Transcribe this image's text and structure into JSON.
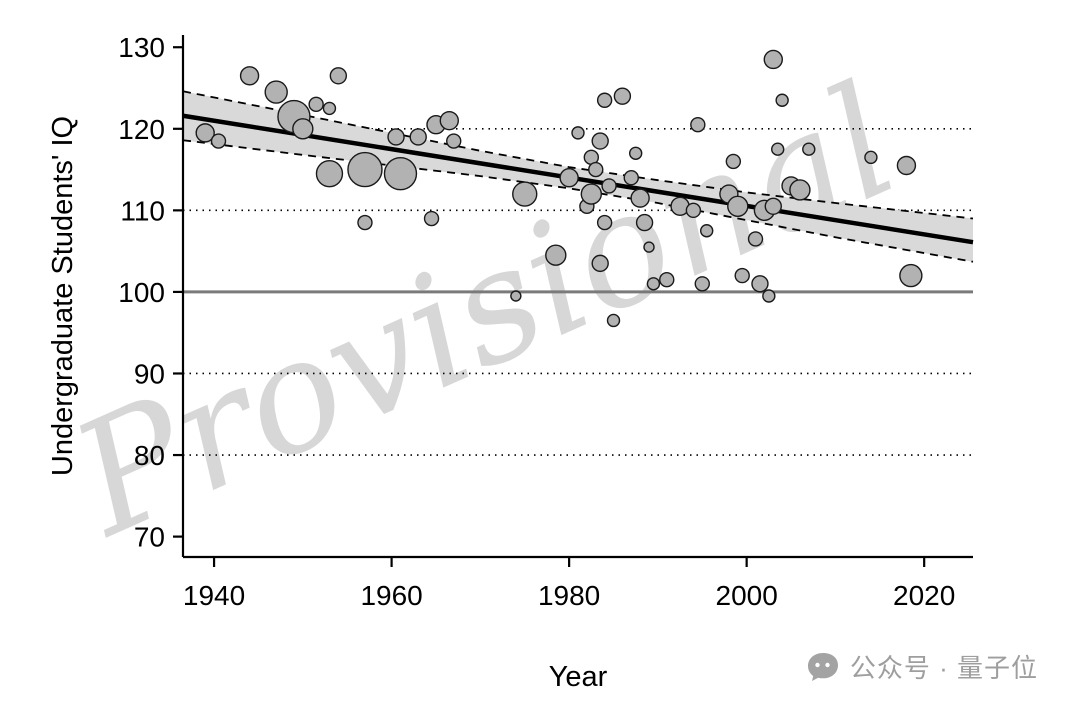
{
  "watermark": "Provisional",
  "footer": {
    "brand_text": "公众号 · 量子位",
    "icon": "chat-bubble-icon"
  },
  "colors": {
    "point_fill": "#b2b2b2",
    "point_stroke": "#1a1a1a",
    "band_fill": "#d9d9d9",
    "band_edge": "#000000",
    "regression_line": "#000000",
    "reference_line": "#7a7a7a",
    "gridline": "#000000",
    "axis": "#000000",
    "watermark": "#d7d7d7",
    "footer_gray": "#9e9e9e"
  },
  "chart_data": {
    "type": "scatter",
    "title": "",
    "xlabel": "Year",
    "ylabel": "Undergraduate Students' IQ",
    "xlim": [
      1936.5,
      2025.5
    ],
    "ylim": [
      67.5,
      131.5
    ],
    "x_ticks": [
      1940,
      1960,
      1980,
      2000,
      2020
    ],
    "y_ticks": [
      70,
      80,
      90,
      100,
      110,
      120,
      130
    ],
    "gridlines_y_dotted": [
      80,
      90,
      110,
      120
    ],
    "reference_line_y": 100,
    "grid": "horizontal-dotted",
    "legend": "none",
    "regression_line": {
      "x1": 1936.5,
      "y1": 121.6,
      "x2": 2025.5,
      "y2": 106.1
    },
    "confidence_band": {
      "x": [
        1936.5,
        1950,
        1960,
        1970,
        1980,
        1990,
        2000,
        2010,
        2025.5
      ],
      "upper": [
        124.6,
        121.7,
        119.5,
        117.3,
        115.3,
        113.7,
        112.2,
        110.9,
        109.0
      ],
      "lower": [
        118.6,
        116.8,
        115.5,
        114.2,
        112.7,
        110.9,
        108.8,
        106.7,
        103.7
      ]
    },
    "points_format": [
      "year",
      "iq",
      "radius_px"
    ],
    "points": [
      [
        1939,
        119.5,
        9
      ],
      [
        1940.5,
        118.5,
        7
      ],
      [
        1944,
        126.5,
        9
      ],
      [
        1947,
        124.5,
        11
      ],
      [
        1949,
        121.5,
        16
      ],
      [
        1950,
        120,
        10
      ],
      [
        1951.5,
        123,
        7
      ],
      [
        1953,
        122.5,
        6
      ],
      [
        1954,
        126.5,
        8
      ],
      [
        1953,
        114.5,
        13
      ],
      [
        1957,
        115,
        17
      ],
      [
        1961,
        114.5,
        16
      ],
      [
        1957,
        108.5,
        7
      ],
      [
        1960.5,
        119,
        8
      ],
      [
        1963,
        119,
        8
      ],
      [
        1965,
        120.5,
        9
      ],
      [
        1966.5,
        121,
        9
      ],
      [
        1967,
        118.5,
        7
      ],
      [
        1964.5,
        109,
        7
      ],
      [
        1975,
        112,
        12
      ],
      [
        1974,
        99.5,
        5
      ],
      [
        1978.5,
        104.5,
        10
      ],
      [
        1980,
        114,
        9
      ],
      [
        1982,
        110.5,
        7
      ],
      [
        1981,
        119.5,
        6
      ],
      [
        1982.5,
        116.5,
        7
      ],
      [
        1984,
        123.5,
        7
      ],
      [
        1986,
        124,
        8
      ],
      [
        1983.5,
        118.5,
        8
      ],
      [
        1983,
        115,
        7
      ],
      [
        1984.5,
        113,
        7
      ],
      [
        1982.5,
        112,
        10
      ],
      [
        1984,
        108.5,
        7
      ],
      [
        1983.5,
        103.5,
        8
      ],
      [
        1985,
        96.5,
        6
      ],
      [
        1987.5,
        117,
        6
      ],
      [
        1987,
        114,
        7
      ],
      [
        1988,
        111.5,
        9
      ],
      [
        1988.5,
        108.5,
        8
      ],
      [
        1989,
        105.5,
        5
      ],
      [
        1989.5,
        101,
        6
      ],
      [
        1991,
        101.5,
        7
      ],
      [
        1992.5,
        110.5,
        9
      ],
      [
        1994,
        110,
        7
      ],
      [
        1994.5,
        120.5,
        7
      ],
      [
        1995.5,
        107.5,
        6
      ],
      [
        1995,
        101,
        7
      ],
      [
        1998,
        112,
        9
      ],
      [
        1998.5,
        116,
        7
      ],
      [
        1999,
        110.5,
        10
      ],
      [
        1999.5,
        102,
        7
      ],
      [
        2001,
        106.5,
        7
      ],
      [
        2001.5,
        101,
        8
      ],
      [
        2002,
        110,
        10
      ],
      [
        2003,
        110.5,
        8
      ],
      [
        2002.5,
        99.5,
        6
      ],
      [
        2003,
        128.5,
        9
      ],
      [
        2003.5,
        117.5,
        6
      ],
      [
        2004,
        123.5,
        6
      ],
      [
        2005,
        113,
        9
      ],
      [
        2006,
        112.5,
        10
      ],
      [
        2007,
        117.5,
        6
      ],
      [
        2014,
        116.5,
        6
      ],
      [
        2018,
        115.5,
        9
      ],
      [
        2018.5,
        102,
        11
      ]
    ]
  }
}
